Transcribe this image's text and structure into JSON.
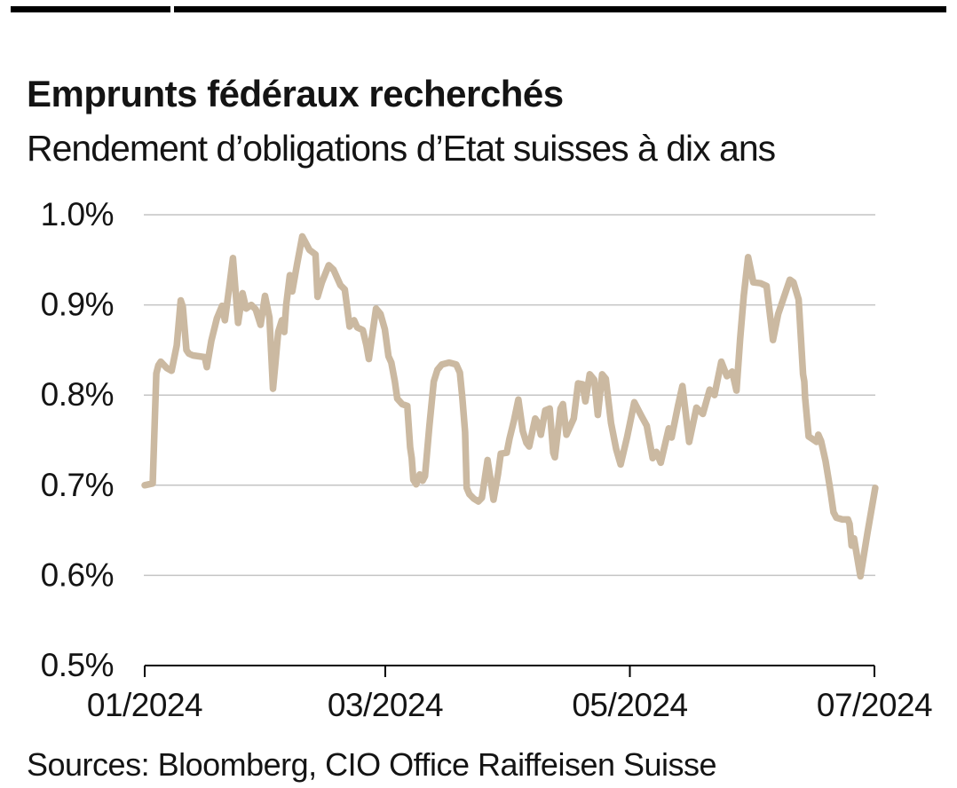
{
  "page": {
    "title": "Emprunts fédéraux recherchés",
    "subtitle": "Rendement d’obligations d’Etat suisses à dix ans",
    "sources": "Sources: Bloomberg, CIO Office Raiffeisen Suisse"
  },
  "colors": {
    "line": "#cbb9a1",
    "grid": "#c4c4c4",
    "axis": "#000000",
    "text": "#141414",
    "top_rule": "#000000",
    "background": "#ffffff"
  },
  "chart_data": {
    "type": "line",
    "title": "Emprunts fédéraux recherchés",
    "subtitle": "Rendement d’obligations d’Etat suisses à dix ans",
    "xlabel": "",
    "ylabel": "",
    "ylim": [
      0.5,
      1.0
    ],
    "x_unit": "day_of_year_2024",
    "x_domain": [
      1,
      183
    ],
    "grid": "horizontal",
    "legend": "none",
    "yticks": [
      {
        "value": 1.0,
        "label": "1.0%"
      },
      {
        "value": 0.9,
        "label": "0.9%"
      },
      {
        "value": 0.8,
        "label": "0.8%"
      },
      {
        "value": 0.7,
        "label": "0.7%"
      },
      {
        "value": 0.6,
        "label": "0.6%"
      },
      {
        "value": 0.5,
        "label": "0.5%"
      }
    ],
    "xticks": [
      {
        "day_of_year": 1,
        "label": "01/2024"
      },
      {
        "day_of_year": 61,
        "label": "03/2024"
      },
      {
        "day_of_year": 122,
        "label": "05/2024"
      },
      {
        "day_of_year": 183,
        "label": "07/2024"
      }
    ],
    "series": [
      {
        "name": "Rendement d’obligations d’Etat suisses à dix ans (%)",
        "color": "#cbb9a1",
        "points": [
          [
            1,
            0.7
          ],
          [
            3,
            0.702
          ],
          [
            3.9,
            0.824
          ],
          [
            4.4,
            0.833
          ],
          [
            5,
            0.837
          ],
          [
            6.5,
            0.83
          ],
          [
            7.7,
            0.827
          ],
          [
            9,
            0.855
          ],
          [
            10,
            0.905
          ],
          [
            10.5,
            0.898
          ],
          [
            11.4,
            0.85
          ],
          [
            12,
            0.846
          ],
          [
            13,
            0.844
          ],
          [
            14.5,
            0.843
          ],
          [
            16,
            0.842
          ],
          [
            16.5,
            0.831
          ],
          [
            17.6,
            0.86
          ],
          [
            19,
            0.885
          ],
          [
            20.3,
            0.899
          ],
          [
            21,
            0.883
          ],
          [
            22.1,
            0.92
          ],
          [
            23,
            0.952
          ],
          [
            24.3,
            0.88
          ],
          [
            25.4,
            0.913
          ],
          [
            26.3,
            0.896
          ],
          [
            27.6,
            0.9
          ],
          [
            28.7,
            0.895
          ],
          [
            29.9,
            0.878
          ],
          [
            31,
            0.91
          ],
          [
            32.1,
            0.886
          ],
          [
            33,
            0.807
          ],
          [
            33.6,
            0.835
          ],
          [
            34.3,
            0.87
          ],
          [
            35.2,
            0.883
          ],
          [
            35.8,
            0.87
          ],
          [
            36.3,
            0.9
          ],
          [
            37.2,
            0.933
          ],
          [
            37.8,
            0.915
          ],
          [
            39,
            0.945
          ],
          [
            40.3,
            0.976
          ],
          [
            42.1,
            0.961
          ],
          [
            43.6,
            0.956
          ],
          [
            44.1,
            0.909
          ],
          [
            45.2,
            0.925
          ],
          [
            46.9,
            0.944
          ],
          [
            48.1,
            0.939
          ],
          [
            49.8,
            0.922
          ],
          [
            50.9,
            0.917
          ],
          [
            52.1,
            0.876
          ],
          [
            53.2,
            0.883
          ],
          [
            54,
            0.875
          ],
          [
            55.4,
            0.872
          ],
          [
            56.3,
            0.855
          ],
          [
            56.9,
            0.84
          ],
          [
            57.8,
            0.868
          ],
          [
            58.7,
            0.896
          ],
          [
            59.8,
            0.89
          ],
          [
            60.9,
            0.873
          ],
          [
            61.8,
            0.843
          ],
          [
            62.5,
            0.836
          ],
          [
            63.4,
            0.815
          ],
          [
            64,
            0.796
          ],
          [
            65.2,
            0.79
          ],
          [
            66.5,
            0.788
          ],
          [
            67.2,
            0.742
          ],
          [
            67.6,
            0.73
          ],
          [
            68,
            0.706
          ],
          [
            68.7,
            0.701
          ],
          [
            69.6,
            0.712
          ],
          [
            70.3,
            0.705
          ],
          [
            70.9,
            0.71
          ],
          [
            72,
            0.766
          ],
          [
            73.1,
            0.815
          ],
          [
            74,
            0.828
          ],
          [
            75.1,
            0.834
          ],
          [
            76.9,
            0.836
          ],
          [
            78.7,
            0.834
          ],
          [
            79.6,
            0.825
          ],
          [
            80.2,
            0.798
          ],
          [
            80.9,
            0.759
          ],
          [
            81.3,
            0.697
          ],
          [
            82,
            0.69
          ],
          [
            83.1,
            0.685
          ],
          [
            84.2,
            0.682
          ],
          [
            85.1,
            0.686
          ],
          [
            86.5,
            0.728
          ],
          [
            87.3,
            0.705
          ],
          [
            88,
            0.684
          ],
          [
            89.1,
            0.712
          ],
          [
            89.8,
            0.735
          ],
          [
            91.3,
            0.736
          ],
          [
            92,
            0.752
          ],
          [
            93.1,
            0.772
          ],
          [
            94.2,
            0.795
          ],
          [
            95.3,
            0.76
          ],
          [
            96.2,
            0.747
          ],
          [
            96.9,
            0.743
          ],
          [
            97.8,
            0.762
          ],
          [
            98.4,
            0.774
          ],
          [
            99.1,
            0.769
          ],
          [
            99.8,
            0.756
          ],
          [
            100.9,
            0.783
          ],
          [
            102,
            0.785
          ],
          [
            102.9,
            0.736
          ],
          [
            103.3,
            0.731
          ],
          [
            104.7,
            0.785
          ],
          [
            105.3,
            0.79
          ],
          [
            106.2,
            0.756
          ],
          [
            108,
            0.774
          ],
          [
            109.1,
            0.813
          ],
          [
            110.2,
            0.812
          ],
          [
            110.9,
            0.793
          ],
          [
            112,
            0.823
          ],
          [
            113.1,
            0.817
          ],
          [
            114,
            0.778
          ],
          [
            115.1,
            0.823
          ],
          [
            116,
            0.818
          ],
          [
            117.3,
            0.769
          ],
          [
            118.6,
            0.74
          ],
          [
            119.7,
            0.723
          ],
          [
            121.3,
            0.753
          ],
          [
            123.1,
            0.792
          ],
          [
            125.1,
            0.775
          ],
          [
            126.2,
            0.766
          ],
          [
            127.7,
            0.73
          ],
          [
            128.6,
            0.737
          ],
          [
            129.7,
            0.725
          ],
          [
            131.7,
            0.763
          ],
          [
            132.4,
            0.753
          ],
          [
            134,
            0.788
          ],
          [
            135.1,
            0.81
          ],
          [
            136.8,
            0.748
          ],
          [
            138.6,
            0.786
          ],
          [
            140.2,
            0.779
          ],
          [
            141.9,
            0.806
          ],
          [
            143.1,
            0.8
          ],
          [
            144.8,
            0.837
          ],
          [
            146.2,
            0.821
          ],
          [
            147.5,
            0.826
          ],
          [
            148.6,
            0.805
          ],
          [
            149.5,
            0.862
          ],
          [
            150.4,
            0.91
          ],
          [
            151.5,
            0.953
          ],
          [
            152.8,
            0.925
          ],
          [
            154.6,
            0.924
          ],
          [
            156.1,
            0.921
          ],
          [
            157.7,
            0.861
          ],
          [
            159,
            0.89
          ],
          [
            161.9,
            0.928
          ],
          [
            162.8,
            0.925
          ],
          [
            164.1,
            0.906
          ],
          [
            165.2,
            0.823
          ],
          [
            165.5,
            0.815
          ],
          [
            165.7,
            0.797
          ],
          [
            166.6,
            0.754
          ],
          [
            167.3,
            0.752
          ],
          [
            168.6,
            0.748
          ],
          [
            169,
            0.756
          ],
          [
            169.7,
            0.749
          ],
          [
            170.8,
            0.727
          ],
          [
            171.9,
            0.697
          ],
          [
            172.8,
            0.67
          ],
          [
            173.5,
            0.664
          ],
          [
            175,
            0.662
          ],
          [
            176.4,
            0.662
          ],
          [
            176.8,
            0.657
          ],
          [
            177.3,
            0.633
          ],
          [
            177.9,
            0.641
          ],
          [
            179.5,
            0.599
          ],
          [
            181.3,
            0.648
          ],
          [
            183.2,
            0.697
          ]
        ]
      }
    ]
  }
}
